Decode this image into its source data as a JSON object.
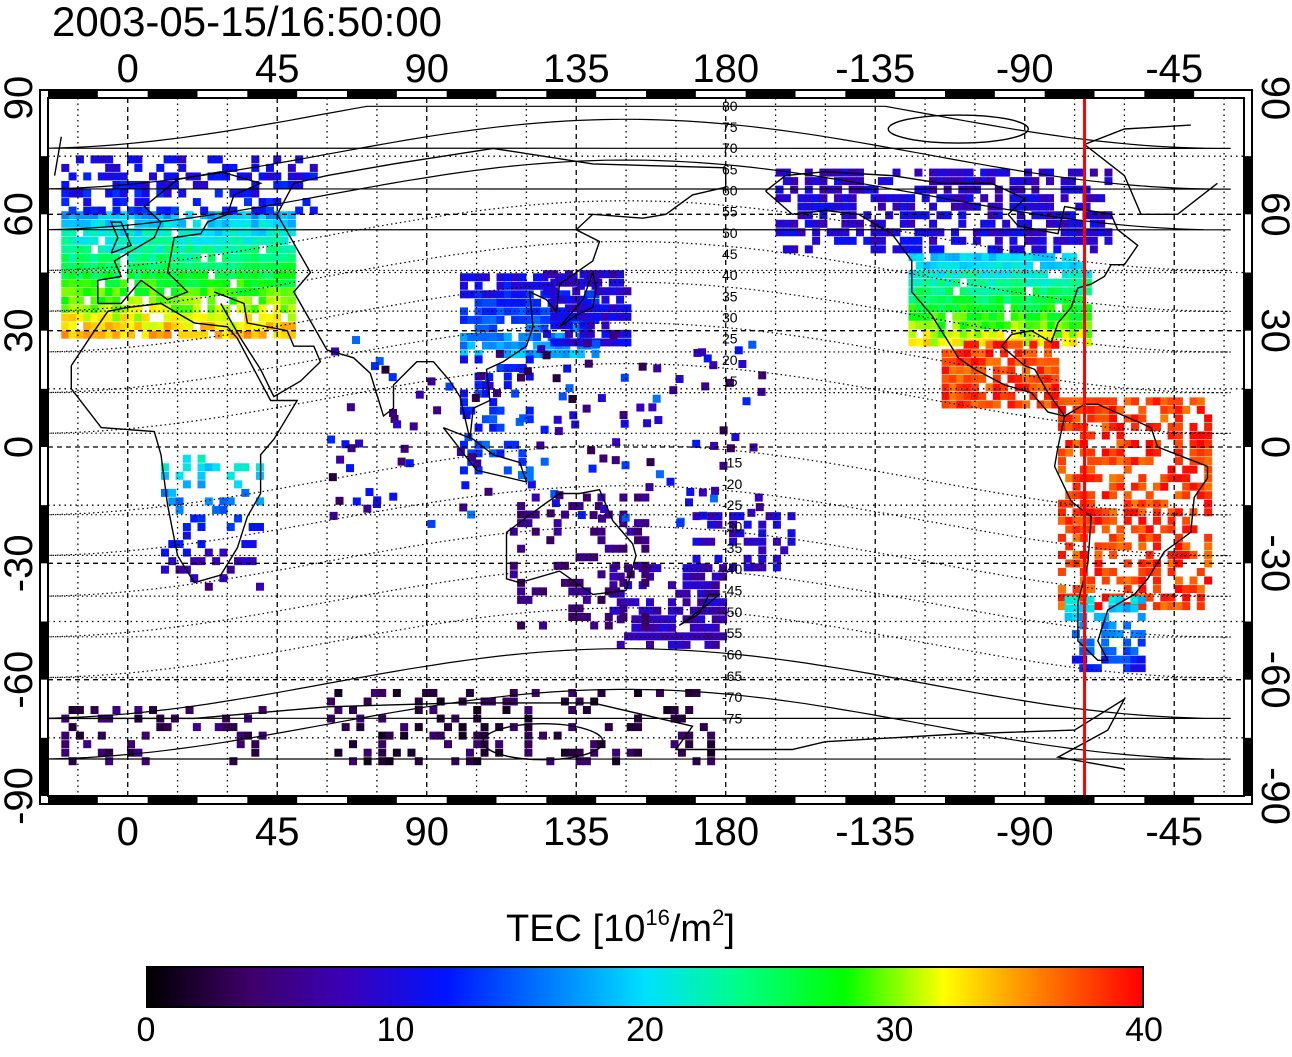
{
  "title": "2003-05-15/16:50:00",
  "map": {
    "lon_ticks": [
      "0",
      "45",
      "90",
      "135",
      "180",
      "-135",
      "-90",
      "-45"
    ],
    "lat_ticks": [
      "90",
      "60",
      "30",
      "0",
      "-30",
      "-60",
      "-90"
    ],
    "lon_range": [
      -24,
      336
    ],
    "lat_range": [
      -90,
      90
    ],
    "grid_step_deg": 15,
    "terminator_lon": -72,
    "contour_labels": [
      "80",
      "75",
      "70",
      "65",
      "60",
      "55",
      "50",
      "45",
      "40",
      "35",
      "30",
      "25",
      "20",
      "15",
      "-15",
      "-20",
      "-25",
      "-30",
      "-35",
      "-40",
      "-45",
      "-50",
      "-55",
      "-60",
      "-65",
      "-70",
      "-75"
    ],
    "colors": {
      "terminator": "#ff0000",
      "frame": "#000000",
      "grid": "#000000"
    }
  },
  "colorbar": {
    "label_main": "TEC  [10",
    "label_exp1": "16",
    "label_mid": "/m",
    "label_exp2": "2",
    "label_end": "]",
    "ticks": [
      "0",
      "10",
      "20",
      "30",
      "40"
    ],
    "range": [
      0,
      40
    ],
    "colormap": [
      "#000000",
      "#3d0066",
      "#3a00b8",
      "#0014ff",
      "#0078ff",
      "#00e0ff",
      "#00ff80",
      "#00ff00",
      "#ffff00",
      "#ff7a00",
      "#ff0000"
    ]
  }
}
